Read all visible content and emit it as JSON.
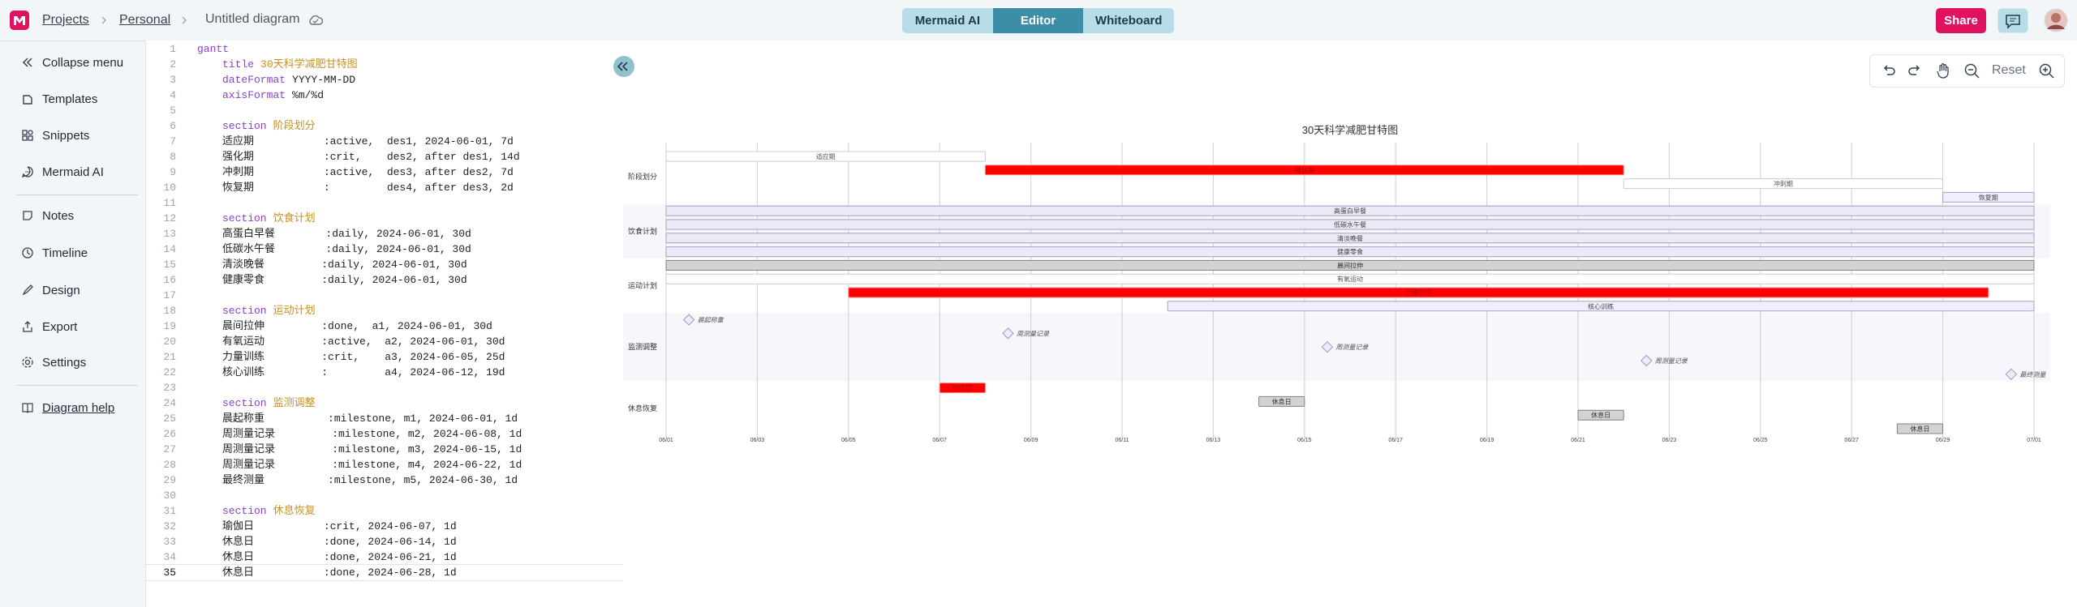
{
  "header": {
    "breadcrumbs": [
      "Projects",
      "Personal"
    ],
    "document": "Untitled diagram",
    "tabs": [
      "Mermaid AI",
      "Editor",
      "Whiteboard"
    ],
    "share": "Share"
  },
  "sidebar": {
    "items": [
      "Collapse menu",
      "Templates",
      "Snippets",
      "Mermaid AI",
      "Notes",
      "Timeline",
      "Design",
      "Export",
      "Settings"
    ],
    "help": "Diagram help"
  },
  "toolbar": {
    "reset": "Reset"
  },
  "editor": {
    "lines": [
      {
        "number": 1,
        "keyword": "gantt"
      },
      {
        "number": 2,
        "keyword": "title",
        "value": "30天科学减肥甘特图"
      },
      {
        "number": 3,
        "keyword": "dateFormat",
        "arg": "YYYY-MM-DD"
      },
      {
        "number": 4,
        "keyword": "axisFormat",
        "arg": "%m/%d"
      },
      {
        "number": 5
      },
      {
        "number": 6,
        "keyword": "section",
        "value": "阶段划分"
      },
      {
        "number": 7,
        "code": "适应期           :active,  des1, 2024-06-01, 7d"
      },
      {
        "number": 8,
        "code": "强化期           :crit,    des2, after des1, 14d"
      },
      {
        "number": 9,
        "code": "冲刺期           :active,  des3, after des2, 7d"
      },
      {
        "number": 10,
        "code": "恢复期           :         des4, after des3, 2d"
      },
      {
        "number": 11
      },
      {
        "number": 12,
        "keyword": "section",
        "value": "饮食计划"
      },
      {
        "number": 13,
        "code": "高蛋白早餐        :daily, 2024-06-01, 30d"
      },
      {
        "number": 14,
        "code": "低碳水午餐        :daily, 2024-06-01, 30d"
      },
      {
        "number": 15,
        "code": "清淡晚餐         :daily, 2024-06-01, 30d"
      },
      {
        "number": 16,
        "code": "健康零食         :daily, 2024-06-01, 30d"
      },
      {
        "number": 17
      },
      {
        "number": 18,
        "keyword": "section",
        "value": "运动计划"
      },
      {
        "number": 19,
        "code": "晨间拉伸         :done,  a1, 2024-06-01, 30d"
      },
      {
        "number": 20,
        "code": "有氧运动         :active,  a2, 2024-06-01, 30d"
      },
      {
        "number": 21,
        "code": "力量训练         :crit,    a3, 2024-06-05, 25d"
      },
      {
        "number": 22,
        "code": "核心训练         :         a4, 2024-06-12, 19d"
      },
      {
        "number": 23
      },
      {
        "number": 24,
        "keyword": "section",
        "value": "监测调整"
      },
      {
        "number": 25,
        "code": "晨起称重          :milestone, m1, 2024-06-01, 1d"
      },
      {
        "number": 26,
        "code": "周测量记录         :milestone, m2, 2024-06-08, 1d"
      },
      {
        "number": 27,
        "code": "周测量记录         :milestone, m3, 2024-06-15, 1d"
      },
      {
        "number": 28,
        "code": "周测量记录         :milestone, m4, 2024-06-22, 1d"
      },
      {
        "number": 29,
        "code": "最终测量          :milestone, m5, 2024-06-30, 1d"
      },
      {
        "number": 30
      },
      {
        "number": 31,
        "keyword": "section",
        "value": "休息恢复"
      },
      {
        "number": 32,
        "code": "瑜伽日           :crit, 2024-06-07, 1d"
      },
      {
        "number": 33,
        "code": "休息日           :done, 2024-06-14, 1d"
      },
      {
        "number": 34,
        "code": "休息日           :done, 2024-06-21, 1d"
      },
      {
        "number": 35,
        "code": "休息日           :done, 2024-06-28, 1d"
      }
    ]
  },
  "diagram": {
    "title": "30天科学减肥甘特图",
    "xlim": [
      0,
      30
    ],
    "xticks": [
      {
        "value": 0,
        "label": "06/01"
      },
      {
        "value": 2,
        "label": "06/03"
      },
      {
        "value": 4,
        "label": "06/05"
      },
      {
        "value": 6,
        "label": "06/07"
      },
      {
        "value": 8,
        "label": "06/09"
      },
      {
        "value": 10,
        "label": "06/11"
      },
      {
        "value": 12,
        "label": "06/13"
      },
      {
        "value": 14,
        "label": "06/15"
      },
      {
        "value": 16,
        "label": "06/17"
      },
      {
        "value": 18,
        "label": "06/19"
      },
      {
        "value": 20,
        "label": "06/21"
      },
      {
        "value": 22,
        "label": "06/23"
      },
      {
        "value": 24,
        "label": "06/25"
      },
      {
        "value": 26,
        "label": "06/27"
      },
      {
        "value": 28,
        "label": "06/29"
      },
      {
        "value": 30,
        "label": "07/01"
      }
    ],
    "sections": [
      {
        "name": "阶段划分",
        "tasks": [
          {
            "label": "适应期",
            "status": "active",
            "start": 0,
            "days": 7
          },
          {
            "label": "强化期",
            "status": "crit",
            "start": 7,
            "days": 14
          },
          {
            "label": "冲刺期",
            "status": "active",
            "start": 21,
            "days": 7
          },
          {
            "label": "恢复期",
            "start": 28,
            "days": 2
          }
        ]
      },
      {
        "name": "饮食计划",
        "tasks": [
          {
            "label": "高蛋白早餐",
            "status": "daily",
            "start": 0,
            "days": 30
          },
          {
            "label": "低碳水午餐",
            "status": "daily",
            "start": 0,
            "days": 30
          },
          {
            "label": "清淡晚餐",
            "status": "daily",
            "start": 0,
            "days": 30
          },
          {
            "label": "健康零食",
            "status": "daily",
            "start": 0,
            "days": 30
          }
        ]
      },
      {
        "name": "运动计划",
        "tasks": [
          {
            "label": "晨间拉伸",
            "status": "done",
            "start": 0,
            "days": 30
          },
          {
            "label": "有氧运动",
            "status": "active",
            "start": 0,
            "days": 30
          },
          {
            "label": "力量训练",
            "status": "crit",
            "start": 4,
            "days": 25
          },
          {
            "label": "核心训练",
            "start": 11,
            "days": 19
          }
        ]
      },
      {
        "name": "监测调整",
        "tasks": [
          {
            "label": "晨起称重",
            "status": "milestone",
            "start": 0,
            "days": 1
          },
          {
            "label": "周测量记录",
            "status": "milestone",
            "start": 7,
            "days": 1
          },
          {
            "label": "周测量记录",
            "status": "milestone",
            "start": 14,
            "days": 1
          },
          {
            "label": "周测量记录",
            "status": "milestone",
            "start": 21,
            "days": 1
          },
          {
            "label": "最终测量",
            "status": "milestone",
            "start": 29,
            "days": 1
          }
        ]
      },
      {
        "name": "休息恢复",
        "tasks": [
          {
            "label": "瑜伽日",
            "status": "crit",
            "start": 6,
            "days": 1
          },
          {
            "label": "休息日",
            "status": "done",
            "start": 13,
            "days": 1
          },
          {
            "label": "休息日",
            "status": "done",
            "start": 20,
            "days": 1
          },
          {
            "label": "休息日",
            "status": "done",
            "start": 27,
            "days": 1
          }
        ]
      }
    ]
  }
}
